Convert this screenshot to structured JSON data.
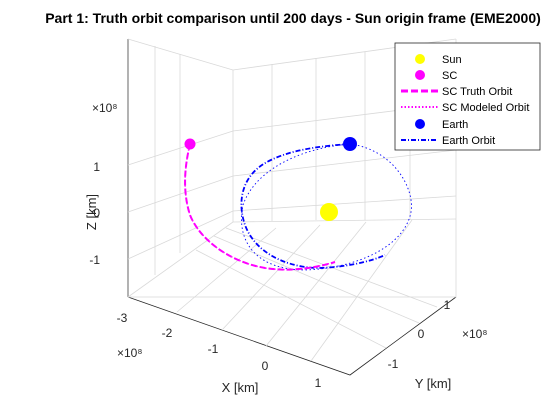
{
  "chart_data": {
    "type": "line",
    "title": "Part 1: Truth orbit comparison until 200 days - Sun origin frame (EME2000)",
    "xlabel": "X [km]",
    "ylabel": "Y [km]",
    "zlabel": "Z [km]",
    "x_exponent": "×10⁸",
    "y_exponent": "×10⁸",
    "z_exponent": "×10⁸",
    "x_ticks": [
      "-3",
      "-2",
      "-1",
      "0",
      "1"
    ],
    "y_ticks": [
      "-1",
      "0",
      "1"
    ],
    "z_ticks": [
      "-1",
      "0",
      "1"
    ],
    "xlim": [
      -3.2,
      1.5
    ],
    "ylim": [
      -1.7,
      1.5
    ],
    "zlim": [
      -1.5,
      2.0
    ],
    "grid": true,
    "legend_placement": "top-right",
    "series": [
      {
        "name": "Sun",
        "color": "#ffff00",
        "marker": "filled-circle",
        "points": [
          [
            0,
            0,
            0
          ]
        ]
      },
      {
        "name": "SC",
        "color": "#ff00ff",
        "marker": "filled-circle",
        "points": [
          [
            -1.3,
            -1.4,
            1.45
          ]
        ]
      },
      {
        "name": "SC Truth Orbit",
        "color": "#ff00ff",
        "style": "dashed",
        "points": [
          [
            -1.3,
            -1.4,
            1.45
          ],
          [
            -1.2,
            -1.05,
            0.6
          ],
          [
            -0.9,
            -0.5,
            -0.2
          ],
          [
            -0.45,
            0.0,
            -0.6
          ],
          [
            0.1,
            0.3,
            -0.6
          ],
          [
            0.55,
            0.25,
            -0.25
          ]
        ]
      },
      {
        "name": "SC Modeled Orbit",
        "color": "#ff00ff",
        "style": "dotted",
        "points": [
          [
            -1.3,
            -1.4,
            1.45
          ],
          [
            -1.2,
            -1.05,
            0.6
          ],
          [
            -0.9,
            -0.5,
            -0.2
          ],
          [
            -0.45,
            0.0,
            -0.6
          ],
          [
            0.1,
            0.3,
            -0.6
          ],
          [
            0.55,
            0.25,
            -0.25
          ]
        ]
      },
      {
        "name": "Earth",
        "color": "#0000ff",
        "marker": "filled-circle",
        "points": [
          [
            1.0,
            0.8,
            1.3
          ]
        ]
      },
      {
        "name": "Earth Orbit",
        "color": "#0000ff",
        "style": "dash-dot",
        "points": [
          [
            1.0,
            0.8,
            1.3
          ],
          [
            -0.1,
            0.15,
            1.1
          ],
          [
            -0.9,
            -0.3,
            0.4
          ],
          [
            -1.2,
            -0.45,
            -0.4
          ],
          [
            -0.8,
            -0.1,
            -1.0
          ],
          [
            0.1,
            0.6,
            -1.2
          ],
          [
            0.9,
            1.15,
            -0.6
          ],
          [
            1.15,
            1.25,
            0.3
          ],
          [
            1.0,
            0.8,
            1.3
          ]
        ]
      }
    ]
  }
}
